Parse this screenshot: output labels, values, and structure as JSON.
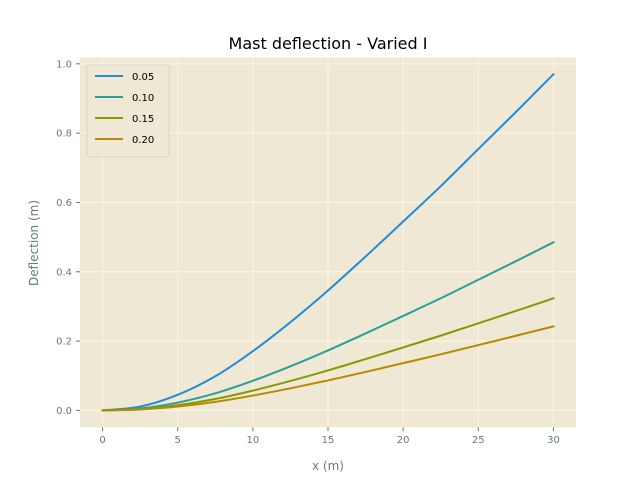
{
  "chart_data": {
    "type": "line",
    "title": "Mast deflection - Varied I",
    "xlabel": "x (m)",
    "ylabel": "Deflection (m)",
    "xlim": [
      -1.5,
      31.5
    ],
    "ylim": [
      -0.0485,
      1.018
    ],
    "xticks": [
      0,
      5,
      10,
      15,
      20,
      25,
      30
    ],
    "yticks": [
      0.0,
      0.2,
      0.4,
      0.6,
      0.8,
      1.0
    ],
    "xtick_labels": [
      "0",
      "5",
      "10",
      "15",
      "20",
      "25",
      "30"
    ],
    "ytick_labels": [
      "0.0",
      "0.2",
      "0.4",
      "0.6",
      "0.8",
      "1.0"
    ],
    "grid": true,
    "legend_position": "upper left",
    "x": [
      0,
      2.5,
      5,
      7.5,
      10,
      12.5,
      15,
      17.5,
      20,
      22.5,
      25,
      27.5,
      30
    ],
    "series": [
      {
        "name": "0.05",
        "color": "#268bd2",
        "values": [
          0.0,
          0.0109,
          0.0449,
          0.0985,
          0.171,
          0.2546,
          0.346,
          0.444,
          0.545,
          0.647,
          0.754,
          0.861,
          0.97
        ]
      },
      {
        "name": "0.10",
        "color": "#2aa198",
        "values": [
          0.0,
          0.0055,
          0.0225,
          0.0493,
          0.0855,
          0.1273,
          0.173,
          0.222,
          0.2725,
          0.3235,
          0.377,
          0.4305,
          0.485
        ]
      },
      {
        "name": "0.15",
        "color": "#859900",
        "values": [
          0.0,
          0.0036,
          0.015,
          0.0328,
          0.057,
          0.0849,
          0.1153,
          0.148,
          0.1817,
          0.2157,
          0.2513,
          0.287,
          0.3233
        ]
      },
      {
        "name": "0.20",
        "color": "#b58900",
        "values": [
          0.0,
          0.0027,
          0.0112,
          0.0246,
          0.0428,
          0.0637,
          0.0865,
          0.111,
          0.1363,
          0.1618,
          0.1885,
          0.2153,
          0.2425
        ]
      }
    ],
    "style": {
      "axes_facecolor": "#eee8d5",
      "grid_color": "#fdf6e3",
      "text_color": "#657b83"
    }
  }
}
